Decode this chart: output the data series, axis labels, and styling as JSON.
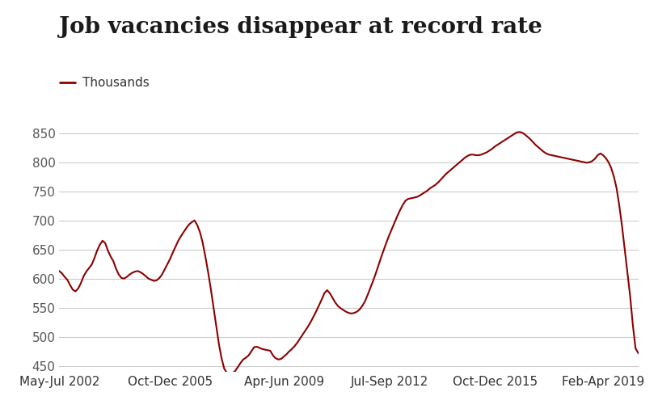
{
  "title": "Job vacancies disappear at record rate",
  "legend_line_label": "Thousands",
  "line_color": "#8B0000",
  "background_color": "#FFFFFF",
  "ylim": [
    440,
    880
  ],
  "yticks": [
    450,
    500,
    550,
    600,
    650,
    700,
    750,
    800,
    850
  ],
  "xtick_labels": [
    "May-Jul 2002",
    "Oct-Dec 2005",
    "Apr-Jun 2009",
    "Jul-Sep 2012",
    "Oct-Dec 2015",
    "Feb-Apr 2019"
  ],
  "xtick_positions": [
    0,
    41,
    83,
    122,
    161,
    201
  ],
  "grid_color": "#CCCCCC",
  "title_fontsize": 20,
  "legend_fontsize": 11,
  "axis_fontsize": 11,
  "values": [
    613,
    609,
    603,
    598,
    589,
    581,
    578,
    583,
    592,
    604,
    612,
    618,
    624,
    635,
    648,
    658,
    665,
    661,
    648,
    638,
    630,
    617,
    607,
    601,
    600,
    603,
    607,
    610,
    612,
    613,
    611,
    608,
    604,
    600,
    598,
    596,
    597,
    601,
    607,
    616,
    625,
    634,
    645,
    655,
    665,
    673,
    680,
    687,
    693,
    697,
    700,
    692,
    680,
    662,
    638,
    612,
    583,
    551,
    518,
    488,
    463,
    445,
    438,
    436,
    438,
    441,
    448,
    455,
    461,
    464,
    468,
    475,
    482,
    483,
    481,
    479,
    478,
    477,
    476,
    468,
    463,
    461,
    462,
    466,
    470,
    475,
    479,
    484,
    490,
    497,
    504,
    511,
    518,
    526,
    535,
    544,
    554,
    564,
    575,
    580,
    575,
    567,
    559,
    553,
    549,
    546,
    543,
    541,
    540,
    541,
    543,
    547,
    553,
    561,
    572,
    584,
    596,
    609,
    623,
    637,
    650,
    663,
    675,
    686,
    697,
    708,
    718,
    727,
    734,
    737,
    738,
    739,
    740,
    742,
    745,
    748,
    751,
    755,
    758,
    761,
    765,
    770,
    775,
    780,
    784,
    788,
    792,
    796,
    800,
    804,
    808,
    811,
    813,
    813,
    812,
    812,
    813,
    815,
    817,
    820,
    823,
    827,
    830,
    833,
    836,
    839,
    842,
    845,
    848,
    851,
    852,
    851,
    848,
    844,
    840,
    835,
    830,
    826,
    822,
    818,
    815,
    813,
    812,
    811,
    810,
    809,
    808,
    807,
    806,
    805,
    804,
    803,
    802,
    801,
    800,
    799,
    800,
    802,
    806,
    812,
    815,
    812,
    807,
    800,
    790,
    775,
    755,
    725,
    690,
    650,
    610,
    570,
    520,
    480,
    472
  ]
}
